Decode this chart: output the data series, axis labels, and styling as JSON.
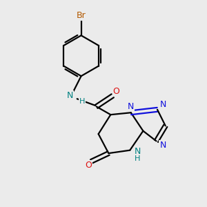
{
  "background_color": "#ebebeb",
  "atom_colors": {
    "C": "#000000",
    "N": "#1010dd",
    "O": "#dd1010",
    "Br": "#b35900",
    "NH": "#008080"
  },
  "lw": 1.6,
  "fontsize": 9.0
}
